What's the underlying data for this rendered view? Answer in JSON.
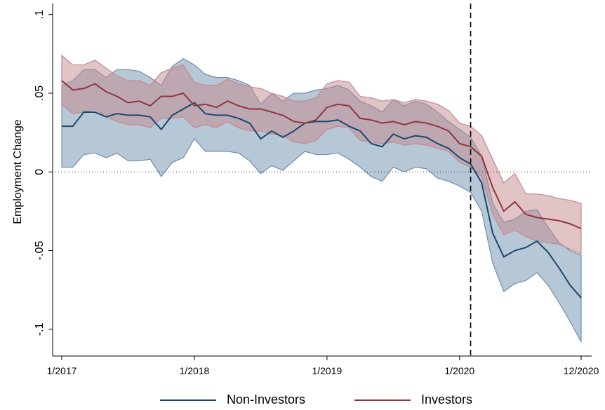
{
  "chart_data": {
    "type": "line",
    "y_label": "Employment Change",
    "x": [
      "1/2017",
      "2/2017",
      "3/2017",
      "4/2017",
      "5/2017",
      "6/2017",
      "7/2017",
      "8/2017",
      "9/2017",
      "10/2017",
      "11/2017",
      "12/2017",
      "1/2018",
      "2/2018",
      "3/2018",
      "4/2018",
      "5/2018",
      "6/2018",
      "7/2018",
      "8/2018",
      "9/2018",
      "10/2018",
      "11/2018",
      "12/2018",
      "1/2019",
      "2/2019",
      "3/2019",
      "4/2019",
      "5/2019",
      "6/2019",
      "7/2019",
      "8/2019",
      "9/2019",
      "10/2019",
      "11/2019",
      "12/2019",
      "1/2020",
      "2/2020",
      "3/2020",
      "4/2020",
      "5/2020",
      "6/2020",
      "7/2020",
      "8/2020",
      "9/2020",
      "10/2020",
      "11/2020",
      "12/2020"
    ],
    "xticks": [
      "1/2017",
      "1/2018",
      "1/2019",
      "1/2020",
      "12/2020"
    ],
    "ylim": [
      -0.117,
      0.107
    ],
    "yticks": [
      {
        "value": 0.1,
        "label": ".1"
      },
      {
        "value": 0.05,
        "label": ".05"
      },
      0,
      {
        "value": -0.05,
        "label": "-.05"
      },
      {
        "value": -0.1,
        "label": "-.1"
      }
    ],
    "vline": "2/2020",
    "hline": 0,
    "legend": "bottom",
    "series": [
      {
        "name": "Non-Investors",
        "color": "#1a476f",
        "band_color": "#6e8fae",
        "values": [
          0.029,
          0.029,
          0.038,
          0.038,
          0.035,
          0.037,
          0.036,
          0.036,
          0.035,
          0.027,
          0.036,
          0.04,
          0.044,
          0.037,
          0.036,
          0.036,
          0.034,
          0.031,
          0.021,
          0.026,
          0.022,
          0.026,
          0.031,
          0.032,
          0.032,
          0.033,
          0.029,
          0.026,
          0.018,
          0.016,
          0.024,
          0.021,
          0.023,
          0.022,
          0.018,
          0.015,
          0.009,
          0.005,
          -0.007,
          -0.039,
          -0.054,
          -0.05,
          -0.048,
          -0.044,
          -0.051,
          -0.061,
          -0.072,
          -0.08
        ],
        "upper": [
          0.055,
          0.058,
          0.065,
          0.065,
          0.06,
          0.065,
          0.065,
          0.064,
          0.06,
          0.055,
          0.067,
          0.072,
          0.068,
          0.062,
          0.06,
          0.06,
          0.058,
          0.055,
          0.043,
          0.05,
          0.045,
          0.05,
          0.05,
          0.052,
          0.053,
          0.055,
          0.052,
          0.045,
          0.042,
          0.038,
          0.046,
          0.042,
          0.045,
          0.043,
          0.038,
          0.032,
          0.027,
          0.022,
          0.01,
          -0.02,
          -0.032,
          -0.03,
          -0.025,
          -0.024,
          -0.035,
          -0.045,
          -0.05,
          -0.053
        ],
        "lower": [
          0.003,
          0.003,
          0.011,
          0.012,
          0.009,
          0.012,
          0.007,
          0.007,
          0.008,
          -0.003,
          0.006,
          0.009,
          0.021,
          0.013,
          0.013,
          0.013,
          0.012,
          0.007,
          -0.001,
          0.004,
          0.001,
          0.007,
          0.013,
          0.011,
          0.011,
          0.012,
          0.008,
          0.003,
          -0.003,
          -0.006,
          0.003,
          0.0,
          0.003,
          0.002,
          -0.004,
          -0.006,
          -0.009,
          -0.013,
          -0.025,
          -0.058,
          -0.076,
          -0.071,
          -0.069,
          -0.064,
          -0.072,
          -0.083,
          -0.095,
          -0.108
        ]
      },
      {
        "name": "Investors",
        "color": "#90353b",
        "band_color": "#c48a8e",
        "values": [
          0.058,
          0.052,
          0.053,
          0.056,
          0.051,
          0.048,
          0.044,
          0.045,
          0.042,
          0.048,
          0.048,
          0.05,
          0.042,
          0.043,
          0.041,
          0.045,
          0.042,
          0.04,
          0.04,
          0.038,
          0.036,
          0.032,
          0.031,
          0.033,
          0.041,
          0.043,
          0.042,
          0.034,
          0.033,
          0.031,
          0.032,
          0.03,
          0.032,
          0.031,
          0.029,
          0.026,
          0.018,
          0.016,
          0.01,
          -0.01,
          -0.025,
          -0.019,
          -0.027,
          -0.029,
          -0.03,
          -0.031,
          -0.033,
          -0.036
        ],
        "upper": [
          0.074,
          0.068,
          0.068,
          0.071,
          0.066,
          0.061,
          0.058,
          0.058,
          0.055,
          0.063,
          0.066,
          0.068,
          0.057,
          0.055,
          0.055,
          0.059,
          0.056,
          0.054,
          0.053,
          0.05,
          0.048,
          0.045,
          0.045,
          0.047,
          0.056,
          0.058,
          0.057,
          0.048,
          0.047,
          0.045,
          0.046,
          0.044,
          0.046,
          0.045,
          0.043,
          0.039,
          0.031,
          0.029,
          0.023,
          0.008,
          -0.007,
          -0.001,
          -0.014,
          -0.014,
          -0.015,
          -0.017,
          -0.018,
          -0.02
        ],
        "lower": [
          0.043,
          0.037,
          0.038,
          0.04,
          0.035,
          0.032,
          0.03,
          0.03,
          0.028,
          0.034,
          0.034,
          0.035,
          0.028,
          0.03,
          0.028,
          0.032,
          0.028,
          0.026,
          0.026,
          0.024,
          0.023,
          0.019,
          0.018,
          0.02,
          0.027,
          0.029,
          0.028,
          0.02,
          0.019,
          0.018,
          0.019,
          0.017,
          0.018,
          0.017,
          0.015,
          0.013,
          0.006,
          0.003,
          -0.003,
          -0.027,
          -0.04,
          -0.037,
          -0.041,
          -0.044,
          -0.045,
          -0.046,
          -0.049,
          -0.052
        ]
      }
    ]
  }
}
